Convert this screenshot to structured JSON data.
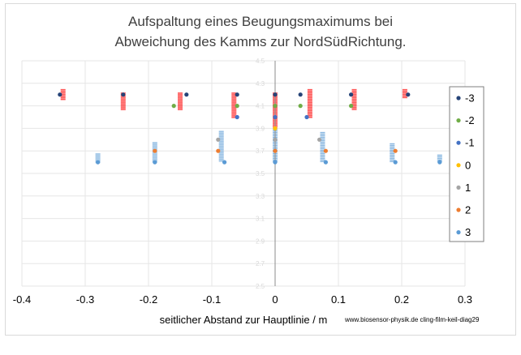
{
  "chart_data": {
    "type": "scatter",
    "title_line1": "Aufspaltung eines Beugungsmaximums bei",
    "title_line2": "Abweichung des Kamms zur NordSüdRichtung.",
    "xlabel": "seitlicher Abstand zur Hauptlinie / m",
    "credit": "www.biosensor-physik.de  cling-film-keil-diag29",
    "xlim": [
      -0.4,
      0.3
    ],
    "ylim": [
      2.5,
      4.5
    ],
    "xticks": [
      -0.4,
      -0.3,
      -0.2,
      -0.1,
      0,
      0.1,
      0.2,
      0.3
    ],
    "xtick_labels": [
      "-0.4",
      "-0.3",
      "-0.2",
      "-0.1",
      "0",
      "0.1",
      "0.2",
      "0.3"
    ],
    "yticks": [
      2.5,
      2.7,
      2.9,
      3.1,
      3.3,
      3.5,
      3.7,
      3.9,
      4.1,
      4.3,
      4.5
    ],
    "ytick_labels": [
      "2.5",
      "2.7",
      "2.9",
      "3.1",
      "3.3",
      "3.5",
      "3.7",
      "3.9",
      "4.1",
      "4.3",
      "4.5"
    ],
    "series": [
      {
        "name": "-3",
        "color": "#264478",
        "y": 4.2,
        "x": [
          -0.34,
          -0.24,
          -0.14,
          -0.06,
          0,
          0.04,
          0.12,
          0.21
        ]
      },
      {
        "name": "-2",
        "color": "#70ad47",
        "y": 4.1,
        "x": [
          -0.16,
          -0.06,
          0,
          0.04,
          0.12
        ]
      },
      {
        "name": "-1",
        "color": "#4472c4",
        "y": 4.0,
        "x": [
          -0.06,
          0,
          0.05
        ]
      },
      {
        "name": "0",
        "color": "#ffc000",
        "y": 3.9,
        "x": [
          0
        ]
      },
      {
        "name": "1",
        "color": "#a5a5a5",
        "y": 3.8,
        "x": [
          -0.09,
          0,
          0.07
        ]
      },
      {
        "name": "2",
        "color": "#ed7d31",
        "y": 3.7,
        "x": [
          -0.19,
          -0.09,
          0,
          0.08,
          0.19
        ]
      },
      {
        "name": "3",
        "color": "#5b9bd5",
        "y": 3.6,
        "x": [
          -0.28,
          -0.19,
          -0.08,
          0,
          0.08,
          0.19,
          0.26
        ]
      }
    ],
    "error_bars": [
      {
        "color": "#ff0000",
        "x": -0.335,
        "y1": 4.15,
        "y2": 4.25
      },
      {
        "color": "#ff0000",
        "x": -0.24,
        "y1": 4.06,
        "y2": 4.22
      },
      {
        "color": "#ff0000",
        "x": -0.15,
        "y1": 4.06,
        "y2": 4.22
      },
      {
        "color": "#ff0000",
        "x": -0.065,
        "y1": 3.99,
        "y2": 4.22
      },
      {
        "color": "#ff0000",
        "x": 0,
        "y1": 3.91,
        "y2": 4.22
      },
      {
        "color": "#ff0000",
        "x": 0.055,
        "y1": 3.99,
        "y2": 4.25
      },
      {
        "color": "#ff0000",
        "x": 0.125,
        "y1": 4.06,
        "y2": 4.25
      },
      {
        "color": "#ff0000",
        "x": 0.205,
        "y1": 4.17,
        "y2": 4.25
      },
      {
        "color": "#5b9bd5",
        "x": -0.28,
        "y1": 3.59,
        "y2": 3.68
      },
      {
        "color": "#5b9bd5",
        "x": -0.19,
        "y1": 3.6,
        "y2": 3.78
      },
      {
        "color": "#5b9bd5",
        "x": -0.085,
        "y1": 3.6,
        "y2": 3.88
      },
      {
        "color": "#5b9bd5",
        "x": 0,
        "y1": 3.6,
        "y2": 3.9
      },
      {
        "color": "#5b9bd5",
        "x": 0.075,
        "y1": 3.6,
        "y2": 3.87
      },
      {
        "color": "#5b9bd5",
        "x": 0.185,
        "y1": 3.6,
        "y2": 3.77
      },
      {
        "color": "#5b9bd5",
        "x": 0.26,
        "y1": 3.6,
        "y2": 3.67
      }
    ],
    "legend_placement": "right"
  }
}
